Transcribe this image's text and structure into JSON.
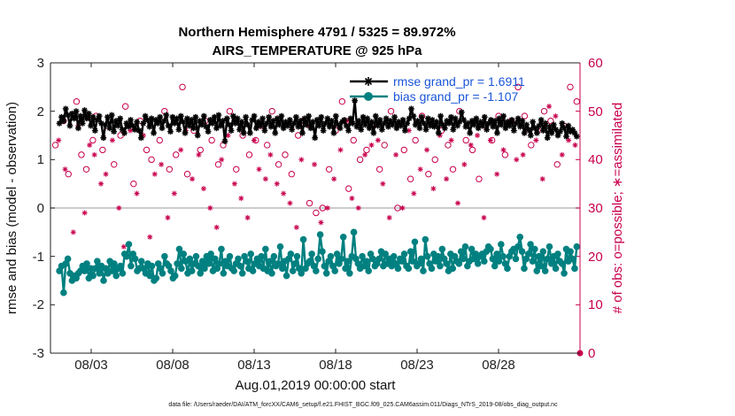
{
  "chart_data": {
    "type": "line",
    "title": "Northern Hemisphere 4791 / 5325 = 89.972%",
    "subtitle": "AIRS_TEMPERATURE @ 925 hPa",
    "xlabel": "Aug.01,2019 00:00:00 start",
    "ylabel": "rmse and bias (model - observation)",
    "y2label": "# of obs: o=possible; ∗=assimilated",
    "xlim": [
      0.5,
      33.0
    ],
    "ylim": [
      -3,
      3
    ],
    "y2lim": [
      0,
      60
    ],
    "x_ticks": [
      3,
      8,
      13,
      18,
      23,
      28
    ],
    "x_tick_labels": [
      "08/03",
      "08/08",
      "08/13",
      "08/18",
      "08/23",
      "08/28"
    ],
    "y_ticks": [
      "-3",
      "-2",
      "-1",
      "0",
      "1",
      "2",
      "3"
    ],
    "y2_ticks": [
      "0",
      "10",
      "20",
      "30",
      "40",
      "50",
      "60"
    ],
    "legend": [
      "rmse grand_pr = 1.6911",
      "bias grand_pr = -1.107"
    ],
    "footer": "data file: /Users/raeder/DAI/ATM_forcXX/CAM6_setup/f.e21.FHIST_BGC.f09_025.CAM6assim.011/Diags_NTrS_2019-08/obs_diag_output.nc",
    "colors": {
      "rmse": "#000000",
      "bias": "#008080",
      "obs": "#c8004d",
      "zero_line": "#bbbbbb"
    },
    "series": [
      {
        "name": "rmse",
        "values": [
          1.75,
          1.88,
          1.8,
          2.05,
          1.92,
          1.7,
          1.95,
          1.85,
          2.0,
          1.65,
          1.9,
          1.75,
          2.02,
          1.85,
          1.95,
          1.7,
          1.88,
          1.6,
          1.82,
          1.9,
          1.75,
          1.45,
          1.72,
          1.88,
          1.65,
          1.92,
          1.58,
          1.8,
          1.7,
          1.85,
          1.62,
          1.55,
          1.75,
          1.68,
          1.82,
          1.7,
          1.62,
          1.78,
          1.6,
          1.45,
          1.75,
          1.9,
          1.82,
          1.68,
          1.85,
          1.55,
          1.82,
          1.75,
          1.88,
          1.65,
          1.8,
          1.92,
          1.7,
          1.58,
          1.88,
          1.75,
          1.85,
          1.62,
          1.9,
          1.78,
          1.55,
          1.85,
          1.7,
          1.82,
          1.65,
          1.88,
          1.5,
          1.8,
          1.72,
          1.9,
          1.68,
          1.58,
          1.82,
          1.75,
          1.88,
          1.65,
          1.92,
          1.7,
          1.8,
          1.38,
          1.85,
          1.72,
          1.6,
          1.9,
          1.75,
          1.85,
          1.62,
          1.78,
          1.55,
          1.88,
          1.72,
          1.55,
          1.82,
          1.9,
          1.65,
          1.78,
          1.7,
          1.85,
          1.6,
          1.75,
          1.88,
          1.68,
          1.8,
          1.55,
          1.85,
          1.72,
          1.9,
          1.65,
          1.78,
          1.7,
          1.82,
          1.62,
          1.75,
          1.88,
          1.68,
          1.8,
          1.55,
          1.85,
          1.72,
          1.9,
          1.65,
          1.78,
          1.45,
          1.82,
          1.7,
          1.88,
          1.6,
          1.75,
          1.85,
          1.68,
          1.8,
          1.55,
          1.9,
          1.72,
          1.65,
          1.78,
          1.82,
          1.7,
          1.6,
          1.85,
          1.75,
          2.22,
          1.68,
          1.8,
          1.62,
          1.88,
          1.72,
          1.85,
          1.65,
          1.78,
          1.55,
          1.9,
          1.7,
          1.82,
          1.62,
          1.75,
          1.85,
          1.68,
          1.8,
          1.72,
          1.88,
          1.65,
          1.78,
          1.7,
          1.82,
          1.6,
          1.75,
          1.85,
          2.05,
          1.9,
          1.72,
          1.8,
          1.65,
          1.88,
          1.75,
          1.62,
          1.85,
          1.7,
          1.82,
          1.68,
          1.78,
          1.55,
          1.9,
          1.72,
          1.65,
          1.8,
          1.75,
          1.88,
          1.62,
          1.85,
          1.7,
          1.78,
          1.98,
          1.82,
          1.68,
          1.75,
          1.55,
          1.8,
          1.72,
          1.85,
          1.65,
          1.78,
          1.7,
          1.88,
          1.62,
          1.75,
          1.82,
          1.68,
          1.8,
          1.55,
          1.85,
          1.72,
          1.9,
          1.65,
          1.78,
          1.7,
          1.82,
          1.6,
          1.75,
          1.85,
          1.68,
          1.8,
          1.55,
          1.72,
          1.62,
          1.5,
          1.78,
          1.65,
          1.55,
          1.7,
          1.82,
          1.6,
          1.75,
          1.45,
          1.68,
          1.55,
          1.72,
          1.62,
          1.5,
          1.58,
          1.75,
          1.65,
          1.48,
          1.7,
          1.58,
          1.62,
          1.55,
          1.48
        ],
        "marker": "asterisk"
      },
      {
        "name": "bias",
        "values": [
          -1.3,
          -1.2,
          -1.75,
          -1.15,
          -1.05,
          -1.35,
          -1.5,
          -1.4,
          -1.45,
          -1.35,
          -1.3,
          -1.2,
          -1.3,
          -1.15,
          -1.45,
          -1.25,
          -1.4,
          -1.25,
          -1.1,
          -1.35,
          -1.2,
          -1.5,
          -1.25,
          -1.35,
          -1.1,
          -1.3,
          -1.15,
          -1.4,
          -1.25,
          -1.2,
          -1.35,
          -0.95,
          -1.0,
          -0.75,
          -1.2,
          -0.95,
          -1.05,
          -1.3,
          -1.25,
          -1.1,
          -1.25,
          -1.35,
          -1.15,
          -1.4,
          -1.2,
          -1.5,
          -1.45,
          -1.15,
          -1.25,
          -1.35,
          -1.0,
          -1.15,
          -1.2,
          -1.3,
          -1.45,
          -1.4,
          -1.15,
          -0.85,
          -1.25,
          -0.95,
          -1.1,
          -1.35,
          -1.05,
          -1.3,
          -1.15,
          -1.0,
          -1.2,
          -1.35,
          -1.1,
          -1.25,
          -1.0,
          -1.15,
          -0.95,
          -1.3,
          -1.05,
          -1.25,
          -1.15,
          -0.85,
          -1.35,
          -1.1,
          -1.2,
          -1.0,
          -1.25,
          -1.3,
          -1.15,
          -1.05,
          -1.2,
          -1.35,
          -1.0,
          -1.1,
          -1.25,
          -0.95,
          -1.3,
          -1.15,
          -1.05,
          -1.2,
          -1.0,
          -1.25,
          -0.85,
          -1.3,
          -1.1,
          -1.35,
          -1.0,
          -1.2,
          -1.15,
          -0.8,
          -1.25,
          -1.1,
          -1.4,
          -1.05,
          -0.95,
          -1.3,
          -1.15,
          -1.0,
          -1.25,
          -1.35,
          -0.65,
          -1.25,
          -1.15,
          -1.1,
          -0.95,
          -1.2,
          -1.3,
          -1.05,
          -0.55,
          -0.9,
          -1.2,
          -1.35,
          -1.1,
          -1.0,
          -1.2,
          -1.3,
          -0.95,
          -1.15,
          -1.05,
          -0.6,
          -1.25,
          -1.1,
          -1.35,
          -1.0,
          -0.5,
          -1.05,
          -1.15,
          -1.25,
          -1.0,
          -1.2,
          -1.1,
          -1.3,
          -0.95,
          -1.05,
          -1.2,
          -1.15,
          -1.05,
          -0.9,
          -1.2,
          -0.95,
          -1.15,
          -1.05,
          -1.2,
          -1.0,
          -1.15,
          -1.25,
          -1.05,
          -1.1,
          -0.95,
          -1.2,
          -1.25,
          -0.9,
          -1.1,
          -0.7,
          -1.2,
          -1.15,
          -1.05,
          -1.3,
          -0.65,
          -1.0,
          -1.15,
          -1.25,
          -0.95,
          -1.1,
          -1.0,
          -1.2,
          -0.85,
          -1.05,
          -1.15,
          -1.3,
          -0.95,
          -1.25,
          -1.0,
          -1.1,
          -1.15,
          -0.9,
          -1.05,
          -0.8,
          -1.2,
          -1.1,
          -0.85,
          -1.05,
          -0.95,
          -1.15,
          -1.0,
          -0.95,
          -1.1,
          -0.9,
          -0.8,
          -0.85,
          -1.05,
          -1.2,
          -0.95,
          -1.1,
          -0.75,
          -1.0,
          -1.15,
          -1.25,
          -1.0,
          -0.9,
          -0.85,
          -1.05,
          -0.8,
          -0.6,
          -0.9,
          -1.25,
          -1.05,
          -0.95,
          -0.75,
          -1.1,
          -0.85,
          -1.3,
          -1.0,
          -1.2,
          -0.9,
          -1.3,
          -1.05,
          -0.8,
          -1.15,
          -1.0,
          -1.25,
          -0.95,
          -1.1,
          -1.15,
          -1.35,
          -0.85,
          -1.1,
          -0.9,
          -1.05,
          -1.25,
          -0.8
        ],
        "marker": "filled-circle"
      },
      {
        "name": "obs_possible",
        "axis": "right",
        "x": [
          0.8,
          1.3,
          1.6,
          2.1,
          2.4,
          2.7,
          3.1,
          3.3,
          3.7,
          4.0,
          4.4,
          4.8,
          5.1,
          5.6,
          6.0,
          6.4,
          6.7,
          7.2,
          7.5,
          7.8,
          8.2,
          8.6,
          8.9,
          9.3,
          9.7,
          10.0,
          10.4,
          10.8,
          11.1,
          11.5,
          11.9,
          12.3,
          12.7,
          13.1,
          13.4,
          13.8,
          14.1,
          14.5,
          14.9,
          15.3,
          15.7,
          16.0,
          16.4,
          16.8,
          17.2,
          17.6,
          18.0,
          18.4,
          18.8,
          19.1,
          19.5,
          19.9,
          20.3,
          20.7,
          21.0,
          21.4,
          21.8,
          22.2,
          22.6,
          22.9,
          23.3,
          23.7,
          24.1,
          24.5,
          24.9,
          25.2,
          25.6,
          26.0,
          26.4,
          26.8,
          27.2,
          27.6,
          28.0,
          28.4,
          28.8,
          29.2,
          29.6,
          30.0,
          30.4,
          30.8,
          31.2,
          31.6,
          32.0,
          32.4,
          32.8
        ],
        "values": [
          43,
          48,
          37,
          52,
          41,
          38,
          44,
          49,
          42,
          47,
          39,
          45,
          51,
          35,
          48,
          42,
          40,
          44,
          50,
          38,
          41,
          55,
          37,
          46,
          42,
          48,
          44,
          39,
          43,
          50,
          38,
          45,
          41,
          44,
          47,
          43,
          50,
          39,
          41,
          37,
          45,
          48,
          31,
          29,
          30,
          38,
          46,
          52,
          34,
          44,
          40,
          42,
          47,
          38,
          43,
          50,
          30,
          42,
          36,
          44,
          49,
          37,
          40,
          46,
          43,
          38,
          50,
          44,
          42,
          36,
          47,
          44,
          49,
          41,
          48,
          55,
          49,
          43,
          46,
          50,
          48,
          39,
          47,
          55,
          52
        ],
        "marker": "open-circle"
      },
      {
        "name": "obs_assimilated",
        "axis": "right",
        "x": [
          1.0,
          1.4,
          1.9,
          2.2,
          2.6,
          2.9,
          3.2,
          3.6,
          3.9,
          4.3,
          4.7,
          5.0,
          5.4,
          5.8,
          6.2,
          6.6,
          6.9,
          7.3,
          7.7,
          8.1,
          8.5,
          8.8,
          9.2,
          9.6,
          9.9,
          10.3,
          10.7,
          11.0,
          11.4,
          11.8,
          12.2,
          12.6,
          13.0,
          13.3,
          13.7,
          14.0,
          14.4,
          14.8,
          15.2,
          15.6,
          15.9,
          16.3,
          16.7,
          17.1,
          17.5,
          17.9,
          18.3,
          18.7,
          19.0,
          19.4,
          19.8,
          20.2,
          20.6,
          20.9,
          21.3,
          21.7,
          22.1,
          22.5,
          22.8,
          23.2,
          23.6,
          24.0,
          24.4,
          24.8,
          25.1,
          25.5,
          25.9,
          26.3,
          26.7,
          27.1,
          27.5,
          27.9,
          28.3,
          28.7,
          29.1,
          29.5,
          29.9,
          30.3,
          30.7,
          31.1,
          31.5,
          31.9,
          32.3,
          32.7
        ],
        "values": [
          44,
          38,
          25,
          47,
          29,
          43,
          41,
          35,
          37,
          44,
          30,
          22,
          46,
          33,
          45,
          24,
          37,
          39,
          28,
          33,
          42,
          46,
          36,
          41,
          34,
          30,
          26,
          40,
          45,
          35,
          32,
          28,
          44,
          38,
          36,
          41,
          35,
          33,
          31,
          26,
          40,
          47,
          39,
          27,
          30,
          36,
          42,
          48,
          32,
          30,
          41,
          43,
          44,
          35,
          28,
          41,
          30,
          46,
          33,
          38,
          42,
          34,
          45,
          36,
          44,
          31,
          39,
          43,
          45,
          28,
          44,
          37,
          42,
          48,
          40,
          41,
          46,
          44,
          36,
          51,
          49,
          41,
          44,
          43
        ],
        "marker": "asterisk"
      }
    ]
  }
}
